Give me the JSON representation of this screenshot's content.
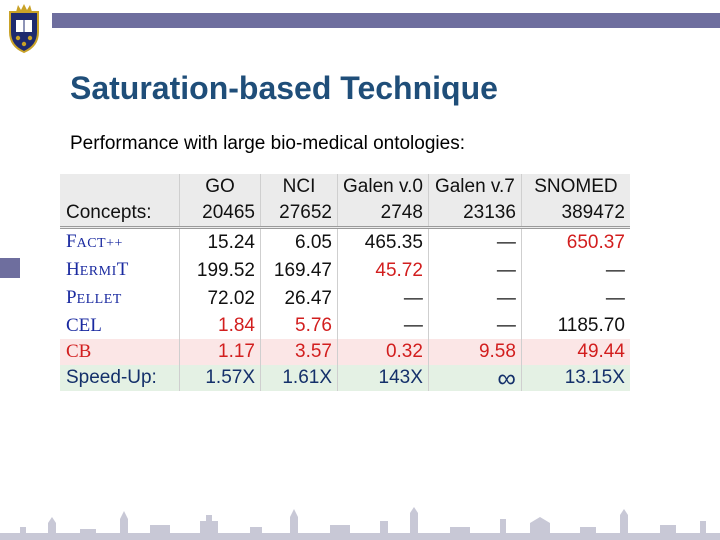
{
  "slide": {
    "title": "Saturation-based Technique",
    "subtitle": "Performance with large bio-medical ontologies:",
    "accent_color": "#6e6e9e",
    "title_color": "#1f4e79",
    "logo": "university-crest",
    "footer_image": "city-skyline-silhouette"
  },
  "table": {
    "headers": [
      "",
      "GO",
      "NCI",
      "Galen v.0",
      "Galen v.7",
      "SNOMED"
    ],
    "concepts": {
      "label": "Concepts:",
      "values": [
        "20465",
        "27652",
        "2748",
        "23136",
        "389472"
      ]
    },
    "rows": [
      {
        "sys_first": "F",
        "sys_rest": "ACT++",
        "values": [
          "15.24",
          "6.05",
          "465.35",
          "—",
          "650.37"
        ]
      },
      {
        "sys_first": "H",
        "sys_rest": "ERMI",
        "sys_last": "T",
        "values": [
          "199.52",
          "169.47",
          "45.72",
          "—",
          "—"
        ]
      },
      {
        "sys_first": "P",
        "sys_rest": "ELLET",
        "values": [
          "72.02",
          "26.47",
          "—",
          "—",
          "—"
        ]
      },
      {
        "sys_label": "CEL",
        "values": [
          "1.84",
          "5.76",
          "—",
          "—",
          "1185.70"
        ]
      }
    ],
    "cb": {
      "label": "CB",
      "values": [
        "1.17",
        "3.57",
        "0.32",
        "9.58",
        "49.44"
      ]
    },
    "speedup": {
      "label": "Speed-Up:",
      "values": [
        "1.57X",
        "1.61X",
        "143X",
        "∞",
        "13.15X"
      ]
    },
    "highlight_color": "#d21e1e"
  }
}
